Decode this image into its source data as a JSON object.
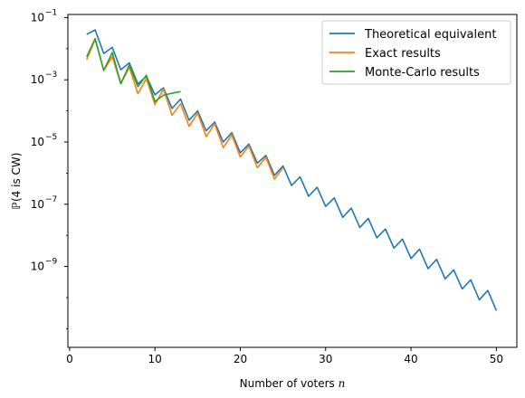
{
  "chart_data": {
    "type": "line",
    "xlabel": "Number of voters",
    "xlabel_var": "n",
    "ylabel": "ℙ(4 is CW)",
    "y_scale": "log",
    "xlim": [
      -0.2,
      52.4
    ],
    "ylim_exp": [
      -11.6,
      -0.9
    ],
    "x_ticks": [
      0,
      10,
      20,
      30,
      40,
      50
    ],
    "x_tick_labels": [
      "0",
      "10",
      "20",
      "30",
      "40",
      "50"
    ],
    "y_ticks_exp": [
      -1,
      -3,
      -5,
      -7,
      -9
    ],
    "y_tick_labels": [
      "10",
      "10",
      "10",
      "10",
      "10"
    ],
    "y_tick_sups": [
      "−1",
      "−3",
      "−5",
      "−7",
      "−9"
    ],
    "legend_position": "top-right",
    "grid": false,
    "series": [
      {
        "name": "Theoretical equivalent",
        "color": "#1f77b4",
        "x": [
          2,
          3,
          4,
          5,
          6,
          7,
          8,
          9,
          10,
          11,
          12,
          13,
          14,
          15,
          16,
          17,
          18,
          19,
          20,
          21,
          22,
          23,
          24,
          25,
          26,
          27,
          28,
          29,
          30,
          31,
          32,
          33,
          34,
          35,
          36,
          37,
          38,
          39,
          40,
          41,
          42,
          43,
          44,
          45,
          46,
          47,
          48,
          49,
          50
        ],
        "y": [
          0.029,
          0.04,
          0.007,
          0.011,
          0.0021,
          0.0035,
          0.00074,
          0.0013,
          0.00033,
          0.00055,
          0.00012,
          0.00024,
          5e-05,
          0.0001,
          2.3e-05,
          4.4e-05,
          1e-05,
          2e-05,
          4.5e-06,
          8.6e-06,
          2.1e-06,
          3.7e-06,
          8.5e-07,
          1.7e-06,
          4e-07,
          7.6e-07,
          1.8e-07,
          3.5e-07,
          8.5e-08,
          1.6e-07,
          3.8e-08,
          7.5e-08,
          1.8e-08,
          3.5e-08,
          8.3e-09,
          1.6e-08,
          3.9e-09,
          7.6e-09,
          1.8e-09,
          3.6e-09,
          8.5e-10,
          1.7e-09,
          4e-10,
          7.8e-10,
          1.9e-10,
          3.7e-10,
          8.5e-11,
          1.7e-10,
          3.8e-11
        ]
      },
      {
        "name": "Exact results",
        "color": "#ff7f0e",
        "x": [
          2,
          3,
          4,
          5,
          6,
          7,
          8,
          9,
          10,
          11,
          12,
          13,
          14,
          15,
          16,
          17,
          18,
          19,
          20,
          21,
          22,
          23,
          24,
          25
        ],
        "y": [
          0.0045,
          0.02,
          0.002,
          0.0055,
          0.00075,
          0.0025,
          0.00036,
          0.0011,
          0.00016,
          0.0005,
          7.3e-05,
          0.00017,
          3.2e-05,
          8.5e-05,
          1.5e-05,
          3.8e-05,
          6.6e-06,
          1.7e-05,
          3.3e-06,
          7.5e-06,
          1.5e-06,
          3.2e-06,
          6.5e-07,
          1.5e-06
        ]
      },
      {
        "name": "Monte-Carlo results",
        "color": "#2ca02c",
        "x": [
          2,
          3,
          4,
          5,
          6,
          7,
          8,
          9,
          10,
          11,
          12,
          13
        ],
        "y": [
          0.0055,
          0.021,
          0.002,
          0.0075,
          0.00075,
          0.003,
          0.0006,
          0.0014,
          0.0002,
          0.00032,
          0.00037,
          0.00042
        ]
      }
    ]
  }
}
